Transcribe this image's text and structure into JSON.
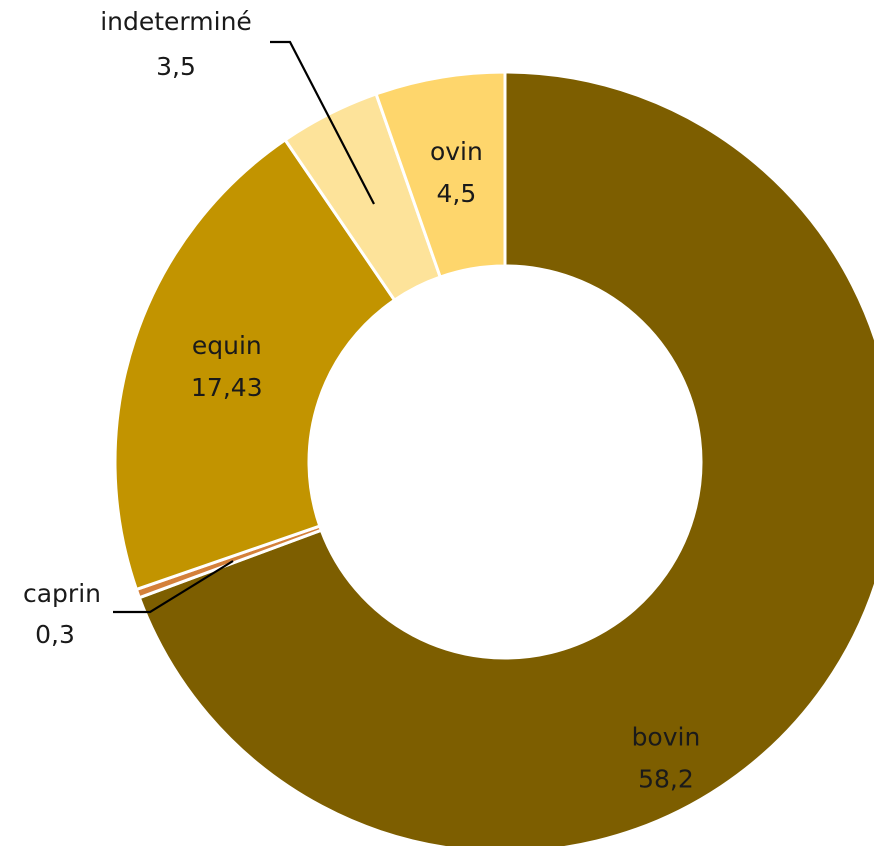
{
  "chart_data": {
    "type": "pie",
    "variant": "donut",
    "title": "",
    "legend": "none",
    "slices": [
      {
        "label": "bovin",
        "value_label": "58,2",
        "value": 58.2,
        "color": "#7d5e00"
      },
      {
        "label": "caprin",
        "value_label": "0,3",
        "value": 0.3,
        "color": "#d4803a"
      },
      {
        "label": "equin",
        "value_label": "17,43",
        "value": 17.43,
        "color": "#c29400"
      },
      {
        "label": "indeterminé",
        "value_label": "3,5",
        "value": 3.5,
        "color": "#fde39a"
      },
      {
        "label": "ovin",
        "value_label": "4,5",
        "value": 4.5,
        "color": "#fed66c"
      }
    ],
    "label_color": "#1a1a1a",
    "separator_color": "#ffffff"
  }
}
